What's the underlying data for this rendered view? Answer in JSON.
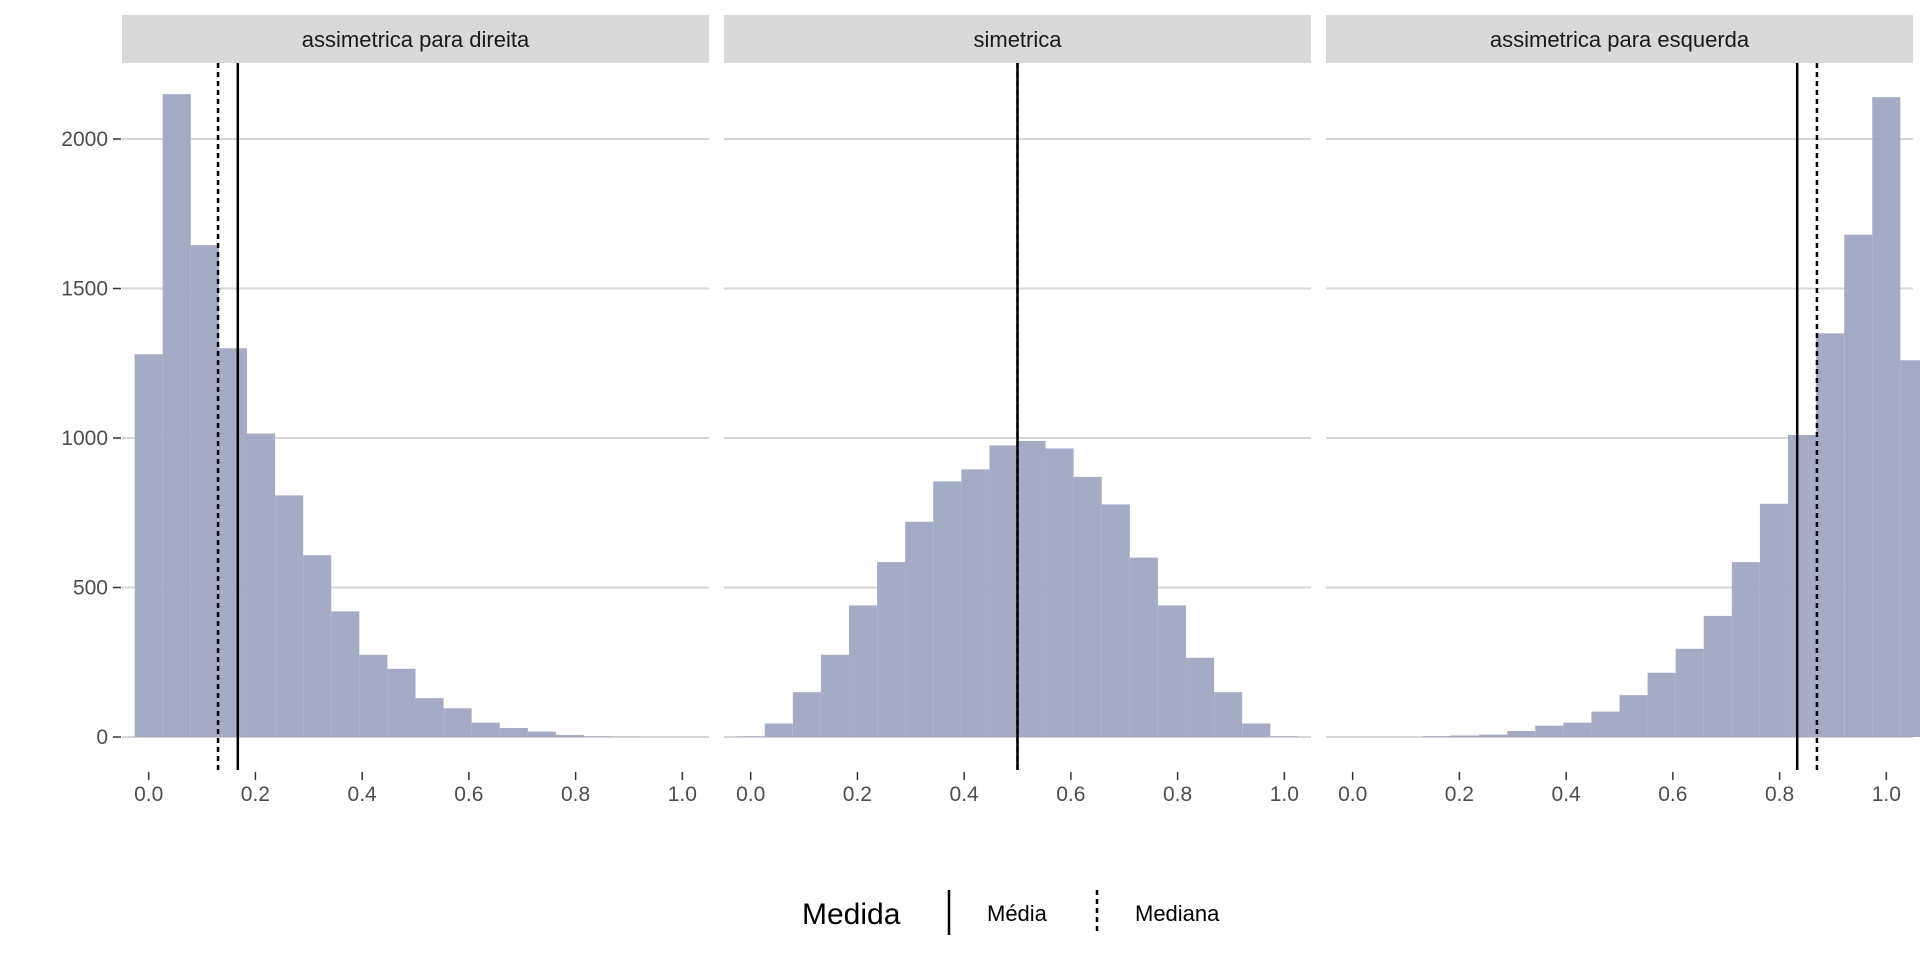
{
  "chart_data": {
    "type": "bar",
    "facets": [
      "assimetrica para direita",
      "simetrica",
      "assimetrica para esquerda"
    ],
    "x_ticks": [
      "0.0",
      "0.2",
      "0.4",
      "0.6",
      "0.8",
      "1.0"
    ],
    "y_ticks": [
      "0",
      "500",
      "1000",
      "1500",
      "2000"
    ],
    "xlim": [
      -0.05,
      1.05
    ],
    "ylim": [
      0,
      2250
    ],
    "grid": "horizontal",
    "legend_position": "bottom",
    "bar_color": "#9ea8c1",
    "bin_width": 0.0526,
    "bin_centers": [
      0.0,
      0.0526,
      0.1053,
      0.1579,
      0.2105,
      0.2632,
      0.3158,
      0.3684,
      0.4211,
      0.4737,
      0.5263,
      0.5789,
      0.6316,
      0.6842,
      0.7368,
      0.7895,
      0.8421,
      0.8947,
      0.9474,
      1.0
    ],
    "series": [
      {
        "facet": "assimetrica para direita",
        "counts": [
          1280,
          2150,
          1645,
          1300,
          1015,
          808,
          608,
          420,
          275,
          228,
          130,
          96,
          48,
          30,
          18,
          7,
          2,
          1,
          0,
          0
        ],
        "media": 0.167,
        "mediana": 0.13
      },
      {
        "facet": "simetrica",
        "counts": [
          2,
          45,
          150,
          275,
          440,
          585,
          720,
          855,
          895,
          975,
          990,
          965,
          870,
          778,
          600,
          440,
          265,
          150,
          45,
          2
        ],
        "media": 0.5,
        "mediana": 0.5
      },
      {
        "facet": "assimetrica para esquerda",
        "counts": [
          0,
          0,
          0,
          0,
          3,
          5,
          8,
          20,
          38,
          48,
          85,
          140,
          215,
          295,
          405,
          585,
          780,
          1010,
          1350,
          1680,
          2140,
          1260
        ],
        "bin_centers_override": [
          -0.0526,
          0.0,
          0.0526,
          0.1053,
          0.1579,
          0.2105,
          0.2632,
          0.3158,
          0.3684,
          0.4211,
          0.4737,
          0.5263,
          0.5789,
          0.6316,
          0.6842,
          0.7368,
          0.7895,
          0.8421,
          0.8947,
          0.9474,
          1.0,
          1.0526
        ],
        "media": 0.833,
        "mediana": 0.87
      }
    ],
    "legend": {
      "title": "Medida",
      "items": [
        {
          "label": "Média",
          "linetype": "solid"
        },
        {
          "label": "Mediana",
          "linetype": "dashed"
        }
      ]
    }
  }
}
